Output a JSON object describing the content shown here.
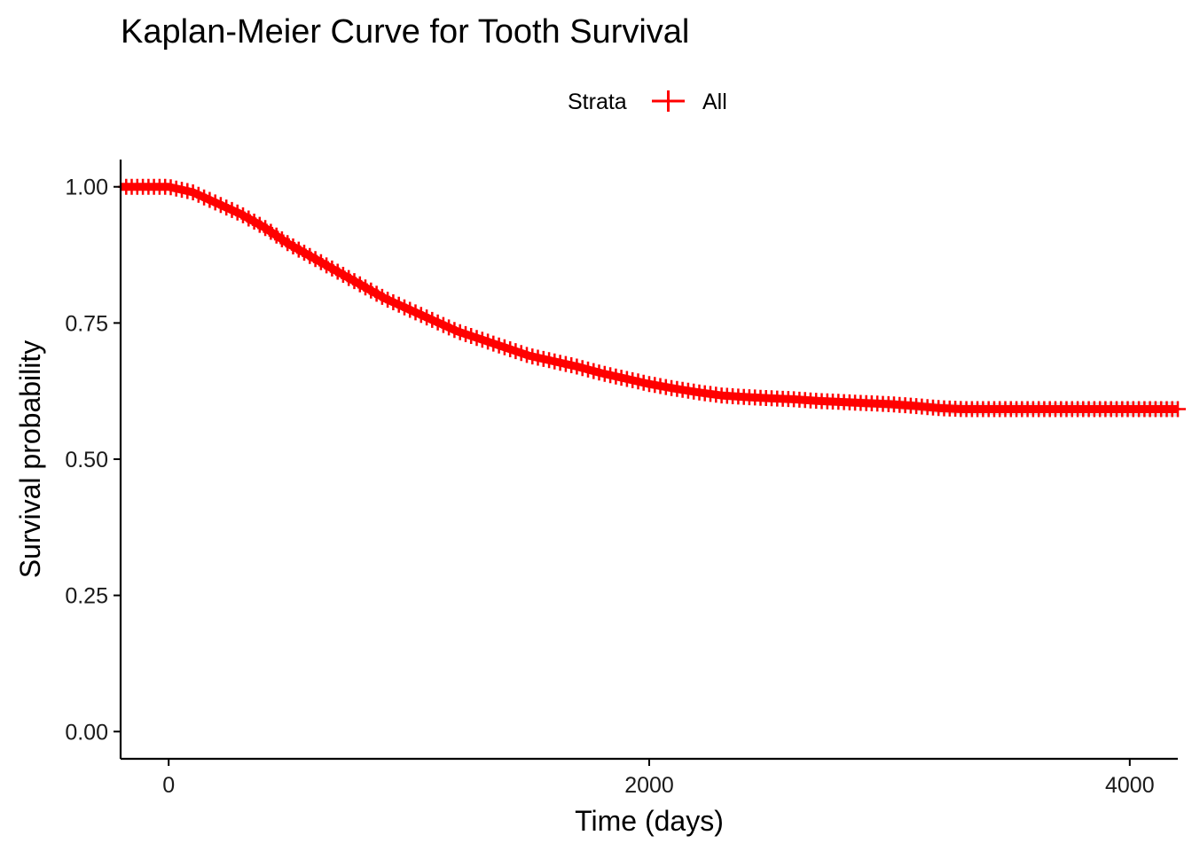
{
  "chart_data": {
    "type": "line",
    "title": "Kaplan-Meier Curve for Tooth Survival",
    "xlabel": "Time (days)",
    "ylabel": "Survival probability",
    "xlim": [
      -200,
      4200
    ],
    "ylim": [
      -0.05,
      1.05
    ],
    "x_ticks": [
      0,
      2000,
      4000
    ],
    "x_tick_labels": [
      "0",
      "2000",
      "4000"
    ],
    "y_ticks": [
      0,
      0.25,
      0.5,
      0.75,
      1.0
    ],
    "y_tick_labels": [
      "0.00",
      "0.25",
      "0.50",
      "0.75",
      "1.00"
    ],
    "grid": false,
    "legend": {
      "position": "top",
      "title": "Strata",
      "entries": [
        "All"
      ]
    },
    "series": [
      {
        "name": "All",
        "color": "#ff0000",
        "step": true,
        "censor_marks": true,
        "confidence_band_color": "#d9d9d9",
        "x": [
          -200,
          0,
          100,
          200,
          300,
          400,
          500,
          600,
          700,
          800,
          900,
          1000,
          1100,
          1200,
          1300,
          1400,
          1500,
          1600,
          1700,
          1800,
          1900,
          2000,
          2100,
          2200,
          2300,
          2400,
          2500,
          2600,
          2700,
          2800,
          2900,
          3000,
          3100,
          3200,
          3300,
          3400,
          3600,
          3800,
          4000,
          4200
        ],
        "y": [
          1.0,
          1.0,
          0.99,
          0.97,
          0.95,
          0.925,
          0.895,
          0.87,
          0.845,
          0.82,
          0.795,
          0.775,
          0.755,
          0.735,
          0.72,
          0.705,
          0.69,
          0.68,
          0.67,
          0.658,
          0.648,
          0.638,
          0.63,
          0.623,
          0.617,
          0.614,
          0.612,
          0.61,
          0.607,
          0.605,
          0.603,
          0.601,
          0.598,
          0.594,
          0.592,
          0.592,
          0.592,
          0.592,
          0.592,
          0.592
        ]
      }
    ]
  }
}
